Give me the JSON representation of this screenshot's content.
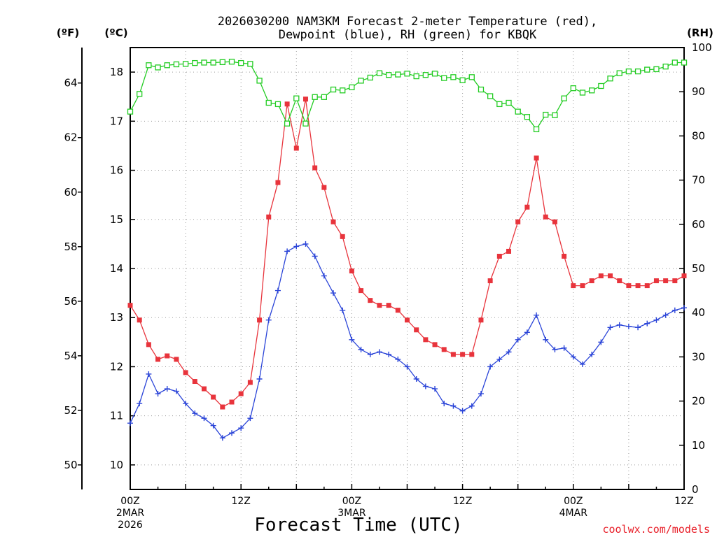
{
  "chart_data": {
    "type": "line",
    "title_line1": "2026030200 NAM3KM Forecast 2-meter Temperature (red),",
    "title_line2": "Dewpoint (blue), RH (green) for KBQK",
    "xlabel": "Forecast Time (UTC)",
    "credit": "coolwx.com/models",
    "units": {
      "fahrenheit": "(ºF)",
      "celsius": "(ºC)",
      "rh": "(RH)"
    },
    "x_hours_range": [
      0,
      60
    ],
    "x_ticks": [
      {
        "hour": 0,
        "label": "00Z",
        "date": "2MAR",
        "year": "2026"
      },
      {
        "hour": 12,
        "label": "12Z",
        "date": "",
        "year": ""
      },
      {
        "hour": 24,
        "label": "00Z",
        "date": "3MAR",
        "year": ""
      },
      {
        "hour": 36,
        "label": "12Z",
        "date": "",
        "year": ""
      },
      {
        "hour": 48,
        "label": "00Z",
        "date": "4MAR",
        "year": ""
      },
      {
        "hour": 60,
        "label": "12Z",
        "date": "",
        "year": ""
      }
    ],
    "celsius_axis": {
      "range": [
        9.5,
        18.5
      ],
      "ticks": [
        "10",
        "11",
        "12",
        "13",
        "14",
        "15",
        "16",
        "17",
        "18"
      ]
    },
    "fahrenheit_ticks": [
      "50",
      "52",
      "54",
      "56",
      "58",
      "60",
      "62",
      "64"
    ],
    "rh_axis": {
      "range": [
        0,
        100
      ],
      "ticks": [
        "0",
        "10",
        "20",
        "30",
        "40",
        "50",
        "60",
        "70",
        "80",
        "90",
        "100"
      ]
    },
    "hours": [
      0,
      1,
      2,
      3,
      4,
      5,
      6,
      7,
      8,
      9,
      10,
      11,
      12,
      13,
      14,
      15,
      16,
      17,
      18,
      19,
      20,
      21,
      22,
      23,
      24,
      25,
      26,
      27,
      28,
      29,
      30,
      31,
      32,
      33,
      34,
      35,
      36,
      37,
      38,
      39,
      40,
      41,
      42,
      43,
      44,
      45,
      46,
      47,
      48,
      49,
      50,
      51,
      52,
      53,
      54,
      55,
      56,
      57,
      58,
      59,
      60
    ],
    "series": [
      {
        "name": "Temperature",
        "unit": "C",
        "color": "#e8343c",
        "marker": "filled-square",
        "values": [
          13.25,
          12.95,
          12.45,
          12.15,
          12.22,
          12.15,
          11.88,
          11.7,
          11.55,
          11.38,
          11.18,
          11.28,
          11.45,
          11.68,
          12.95,
          15.05,
          15.75,
          17.35,
          16.45,
          17.45,
          16.05,
          15.65,
          14.95,
          14.65,
          13.95,
          13.55,
          13.35,
          13.25,
          13.25,
          13.15,
          12.95,
          12.75,
          12.55,
          12.45,
          12.35,
          12.25,
          12.25,
          12.25,
          12.95,
          13.75,
          14.25,
          14.35,
          14.95,
          15.25,
          16.25,
          15.05,
          14.95,
          14.25,
          13.65,
          13.65,
          13.75,
          13.85,
          13.85,
          13.75,
          13.65,
          13.65,
          13.65,
          13.75,
          13.75,
          13.75,
          13.85
        ]
      },
      {
        "name": "Dewpoint",
        "unit": "C",
        "color": "#2a44d8",
        "marker": "plus",
        "values": [
          10.85,
          11.25,
          11.85,
          11.45,
          11.55,
          11.5,
          11.25,
          11.05,
          10.95,
          10.8,
          10.55,
          10.65,
          10.75,
          10.95,
          11.75,
          12.95,
          13.55,
          14.35,
          14.45,
          14.5,
          14.25,
          13.85,
          13.5,
          13.15,
          12.55,
          12.35,
          12.25,
          12.3,
          12.25,
          12.15,
          12.0,
          11.75,
          11.6,
          11.55,
          11.25,
          11.2,
          11.1,
          11.2,
          11.45,
          12.0,
          12.15,
          12.3,
          12.55,
          12.7,
          13.05,
          12.55,
          12.35,
          12.38,
          12.2,
          12.05,
          12.25,
          12.5,
          12.8,
          12.85,
          12.82,
          12.8,
          12.88,
          12.95,
          13.05,
          13.15,
          13.2
        ]
      },
      {
        "name": "RH",
        "unit": "%",
        "color": "#22cc22",
        "marker": "open-square",
        "values": [
          85.5,
          89.5,
          96,
          95.5,
          96,
          96.2,
          96.3,
          96.5,
          96.6,
          96.6,
          96.7,
          96.8,
          96.5,
          96.3,
          92.5,
          87.5,
          87.2,
          82.8,
          88.5,
          82.8,
          88.8,
          88.8,
          90.5,
          90.3,
          91,
          92.5,
          93.2,
          94.2,
          93.8,
          93.9,
          94.1,
          93.5,
          93.8,
          94.1,
          93.1,
          93.3,
          92.6,
          93.3,
          90.5,
          89,
          87.2,
          87.5,
          85.5,
          84.3,
          81.5,
          84.8,
          84.7,
          88.5,
          90.8,
          89.8,
          90.3,
          91.3,
          93,
          94.2,
          94.6,
          94.6,
          95,
          95.1,
          95.7,
          96.6,
          96.6
        ]
      }
    ]
  }
}
